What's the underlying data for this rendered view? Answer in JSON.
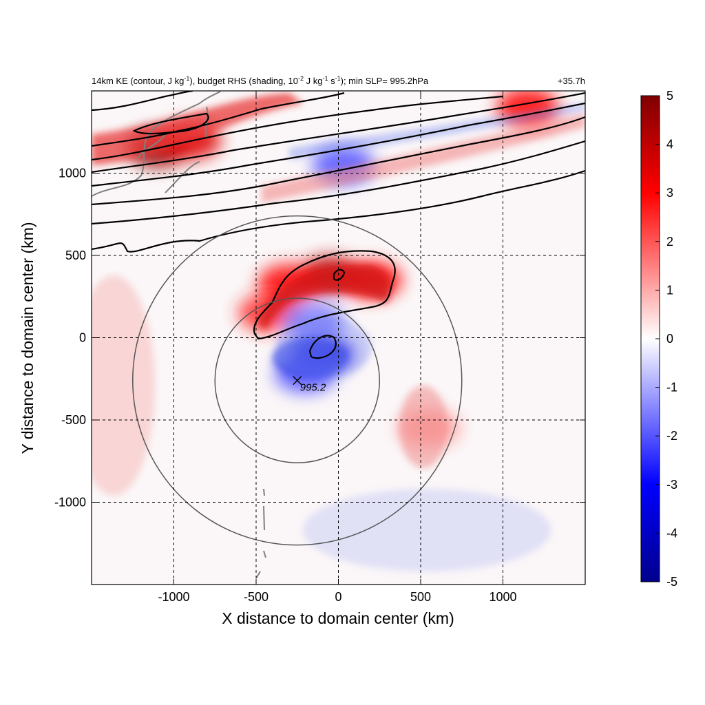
{
  "header": {
    "title_main": "14km KE (contour, J kg",
    "title_sup1": "-1",
    "title_mid1": "), budget RHS (shading, 10",
    "title_sup2": "-2",
    "title_mid2": " J kg",
    "title_sup3": "-1",
    "title_mid3": " s",
    "title_sup4": "-1",
    "title_end": "); min SLP= 995.2hPa",
    "time_label": "+35.7h"
  },
  "chart_data": {
    "type": "heatmap",
    "xlabel": "X distance to domain center (km)",
    "ylabel": "Y distance to domain center (km)",
    "xlim": [
      -1500,
      1500
    ],
    "ylim": [
      -1500,
      1500
    ],
    "xticks": [
      -1000,
      -500,
      0,
      500,
      1000
    ],
    "yticks": [
      -1000,
      -500,
      0,
      500,
      1000
    ],
    "xtick_labels": [
      "-1000",
      "-500",
      "0",
      "500",
      "1000"
    ],
    "ytick_labels": [
      "-1000",
      "-500",
      "0",
      "500",
      "1000"
    ],
    "grid": "dashed",
    "colorbar": {
      "min": -5,
      "max": 5,
      "ticks": [
        -5,
        -4,
        -3,
        -2,
        -1,
        0,
        1,
        2,
        3,
        4,
        5
      ],
      "tick_labels": [
        "-5",
        "-4",
        "-3",
        "-2",
        "-1",
        "0",
        "1",
        "2",
        "3",
        "4",
        "5"
      ],
      "colors": [
        "#00008b",
        "#0000ff",
        "#ffffff",
        "#ff0000",
        "#7f0000"
      ]
    },
    "center_marker": {
      "x": -250,
      "y": -260,
      "label": "995.2"
    },
    "range_circles": [
      {
        "cx": -250,
        "cy": -260,
        "r_km": 500
      },
      {
        "cx": -250,
        "cy": -260,
        "r_km": 1000
      }
    ],
    "shading_features": [
      {
        "x": -1100,
        "y": 1150,
        "value": 4.5
      },
      {
        "x": -900,
        "y": 1200,
        "value": 3.5
      },
      {
        "x": 1150,
        "y": 1400,
        "value": 3.0
      },
      {
        "x": -50,
        "y": 380,
        "value": 4.0
      },
      {
        "x": -300,
        "y": 330,
        "value": 3.0
      },
      {
        "x": 200,
        "y": 350,
        "value": 3.0
      },
      {
        "x": -420,
        "y": 150,
        "value": 2.5
      },
      {
        "x": -100,
        "y": -100,
        "value": -3.5
      },
      {
        "x": -200,
        "y": -220,
        "value": -2.0
      },
      {
        "x": -150,
        "y": 100,
        "value": -1.5
      },
      {
        "x": 30,
        "y": 1050,
        "value": -2.0
      },
      {
        "x": 550,
        "y": -550,
        "value": 1.2
      }
    ]
  }
}
